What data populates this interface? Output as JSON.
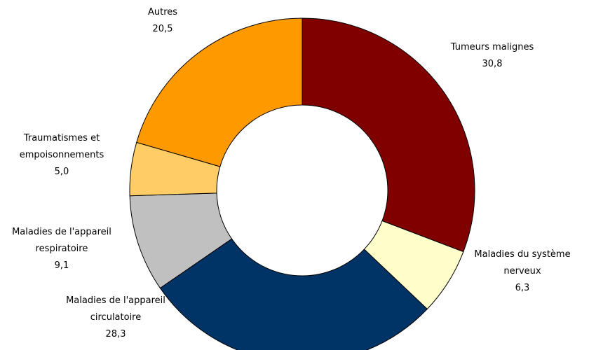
{
  "chart_data": {
    "type": "pie",
    "categories": [
      "Tumeurs malignes",
      "Maladies du système nerveux",
      "Maladies de l'appareil circulatoire",
      "Maladies de l'appareil respiratoire",
      "Traumatismes et empoisonnements",
      "Autres"
    ],
    "values": [
      30.8,
      6.3,
      28.3,
      9.1,
      5.0,
      20.5
    ],
    "value_labels": [
      "30,8",
      "6,3",
      "28,3",
      "9,1",
      "5,0",
      "20,5"
    ],
    "colors": [
      "#800000",
      "#ffffcc",
      "#003366",
      "#c0c0c0",
      "#ffcc66",
      "#ff9900"
    ]
  }
}
